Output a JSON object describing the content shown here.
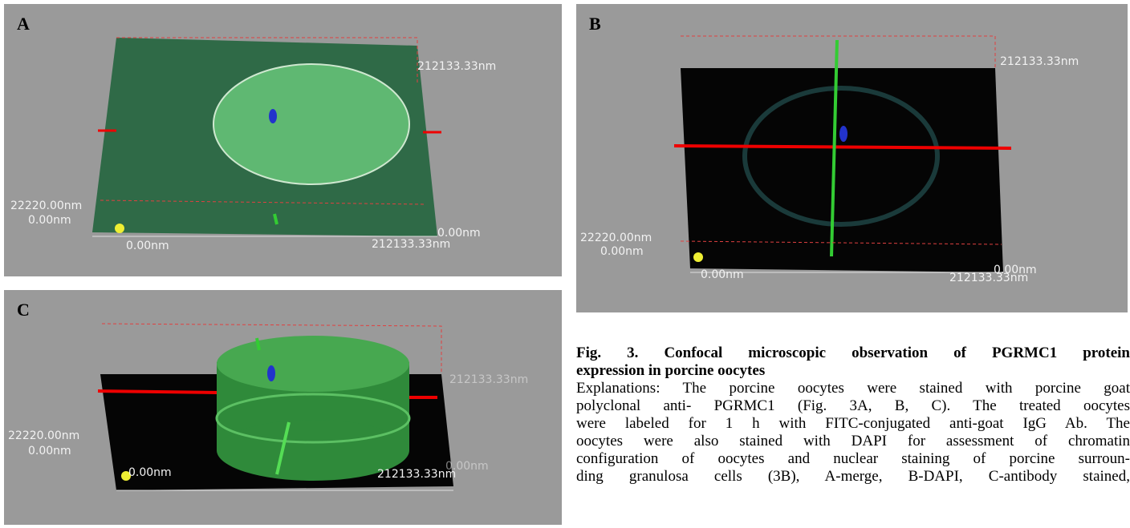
{
  "panels": [
    {
      "label": "A",
      "z_top": "212133.33nm",
      "z_height": "22220.00nm",
      "origin": "0.00nm",
      "x_start": "0.00nm",
      "x_end": "212133.33nm",
      "y_end": "0.00nm"
    },
    {
      "label": "B",
      "z_top": "212133.33nm",
      "z_height": "22220.00nm",
      "origin": "0.00nm",
      "x_start": "0.00nm",
      "x_end": "212133.33nm",
      "y_end": "0.00nm"
    },
    {
      "label": "C",
      "z_top": "212133.33nm",
      "z_height": "22220.00nm",
      "origin": "0.00nm",
      "x_start": "0.00nm",
      "x_end": "212133.33nm",
      "y_end": "0.00nm"
    }
  ],
  "caption": {
    "title_lines": [
      "Fig. 3. Confocal microscopic observation of PGRMC1 protein",
      "expression in porcine oocytes"
    ],
    "lines": [
      "Explanations: The porcine oocytes were stained with porcine goat",
      "polyclonal anti- PGRMC1 (Fig. 3A, B, C). The treated oocytes",
      "were labeled for 1 h with FITC-conjugated anti-goat IgG Ab. The",
      "oocytes were also stained with DAPI for assessment of chromatin",
      "configuration of oocytes and nuclear staining of porcine surroun-",
      "ding granulosa cells (3B), A-merge, B-DAPI, C-antibody stained,"
    ]
  }
}
